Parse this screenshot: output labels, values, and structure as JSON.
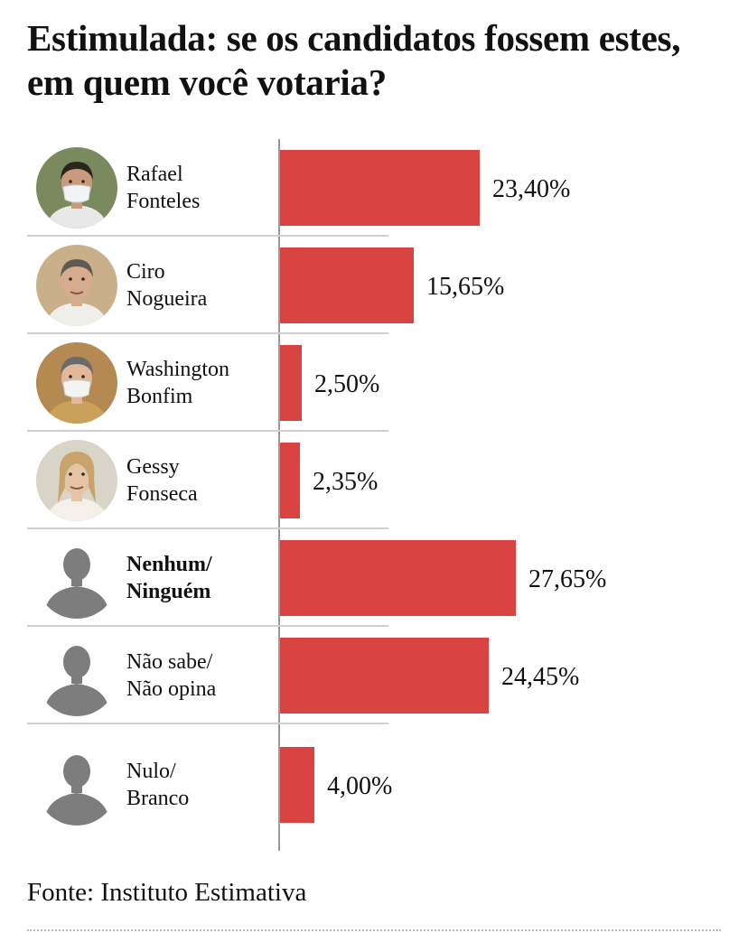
{
  "title": "Estimulada: se os candidatos fossem estes, em quem você votaria?",
  "source": "Fonte: Instituto Estimativa",
  "colors": {
    "bar": "#d84341",
    "axis": "#9a9a9a",
    "divider": "#cfcfcf"
  },
  "chart_data": {
    "type": "bar",
    "orientation": "horizontal",
    "title": "Estimulada: se os candidatos fossem estes, em quem você votaria?",
    "categories": [
      "Rafael Fonteles",
      "Ciro Nogueira",
      "Washington Bonfim",
      "Gessy Fonseca",
      "Nenhum/ Ninguém",
      "Não sabe/ Não opina",
      "Nulo/ Branco"
    ],
    "values": [
      23.4,
      15.65,
      2.5,
      2.35,
      27.65,
      24.45,
      4.0
    ],
    "value_labels": [
      "23,40%",
      "15,65%",
      "2,50%",
      "2,35%",
      "27,65%",
      "24,45%",
      "4,00%"
    ],
    "unit": "%",
    "source": "Fonte: Instituto Estimativa"
  },
  "rows": [
    {
      "name": "Rafael\nFonteles",
      "value": 23.4,
      "label": "23,40%",
      "bold": false,
      "avatar": "person-photo-icon"
    },
    {
      "name": "Ciro\nNogueira",
      "value": 15.65,
      "label": "15,65%",
      "bold": false,
      "avatar": "person-photo-icon"
    },
    {
      "name": "Washington\nBonfim",
      "value": 2.5,
      "label": "2,50%",
      "bold": false,
      "avatar": "person-photo-icon"
    },
    {
      "name": "Gessy\nFonseca",
      "value": 2.35,
      "label": "2,35%",
      "bold": false,
      "avatar": "person-photo-icon"
    },
    {
      "name": "Nenhum/\nNinguém",
      "value": 27.65,
      "label": "27,65%",
      "bold": true,
      "avatar": "person-silhouette-icon"
    },
    {
      "name": "Não sabe/\nNão opina",
      "value": 24.45,
      "label": "24,45%",
      "bold": false,
      "avatar": "person-silhouette-icon"
    },
    {
      "name": "Nulo/\nBranco",
      "value": 4.0,
      "label": "4,00%",
      "bold": false,
      "avatar": "person-silhouette-icon"
    }
  ]
}
